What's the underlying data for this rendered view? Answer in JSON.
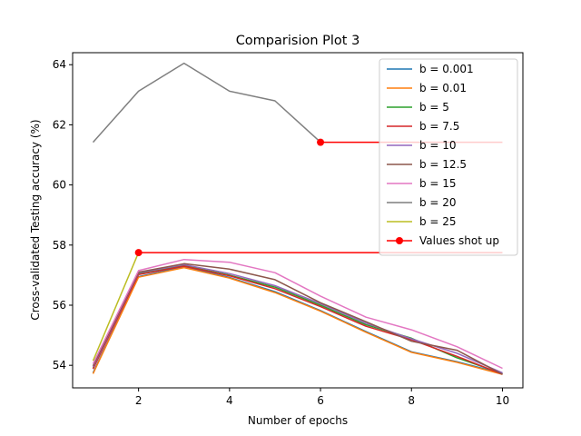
{
  "chart_data": {
    "type": "line",
    "title": "Comparision Plot 3",
    "xlabel": "Number of epochs",
    "ylabel": "Cross-validated Testing accuracy (%)",
    "xlim": [
      0.55,
      10.45
    ],
    "ylim": [
      53.25,
      64.4
    ],
    "xticks": [
      2,
      4,
      6,
      8,
      10
    ],
    "yticks": [
      54,
      56,
      58,
      60,
      62,
      64
    ],
    "grid": false,
    "legend_position": "top-right",
    "x": [
      1,
      2,
      3,
      4,
      5,
      6,
      7,
      8,
      9,
      10
    ],
    "series": [
      {
        "name": "b = 0.001",
        "color": "#1f77b4",
        "values": [
          53.75,
          56.95,
          57.28,
          56.92,
          56.45,
          55.82,
          55.12,
          54.45,
          54.12,
          53.72
        ]
      },
      {
        "name": "b = 0.01",
        "color": "#ff7f0e",
        "values": [
          53.72,
          56.93,
          57.25,
          56.9,
          56.42,
          55.8,
          55.1,
          54.43,
          54.1,
          53.7
        ]
      },
      {
        "name": "b = 5",
        "color": "#2ca02c",
        "values": [
          53.9,
          57.05,
          57.32,
          57.0,
          56.6,
          56.0,
          55.35,
          54.9,
          54.25,
          53.72
        ]
      },
      {
        "name": "b = 7.5",
        "color": "#d62728",
        "values": [
          53.88,
          57.02,
          57.3,
          56.98,
          56.55,
          55.95,
          55.3,
          54.85,
          54.3,
          53.7
        ]
      },
      {
        "name": "b = 10",
        "color": "#9467bd",
        "values": [
          53.95,
          57.08,
          57.35,
          57.05,
          56.65,
          56.05,
          55.4,
          54.88,
          54.4,
          53.75
        ]
      },
      {
        "name": "b = 12.5",
        "color": "#8c564b",
        "values": [
          53.98,
          57.1,
          57.38,
          57.2,
          56.85,
          56.08,
          55.45,
          54.8,
          54.5,
          53.7
        ]
      },
      {
        "name": "b = 15",
        "color": "#e377c2",
        "values": [
          54.05,
          57.15,
          57.52,
          57.43,
          57.08,
          56.3,
          55.6,
          55.18,
          54.62,
          53.9
        ]
      },
      {
        "name": "b = 20",
        "color": "#7f7f7f",
        "values": [
          61.42,
          63.12,
          64.05,
          63.12,
          62.8,
          61.42,
          null,
          null,
          null,
          null
        ]
      },
      {
        "name": "b = 25",
        "color": "#bcbd22",
        "values": [
          54.15,
          57.75,
          null,
          null,
          null,
          null,
          null,
          null,
          null,
          null
        ]
      }
    ],
    "shot_up": {
      "name": "Values shot up",
      "color": "#ff0000",
      "segments": [
        {
          "x": [
            6,
            10
          ],
          "y": [
            61.42,
            61.42
          ]
        },
        {
          "x": [
            2,
            10
          ],
          "y": [
            57.75,
            57.75
          ]
        }
      ]
    }
  }
}
